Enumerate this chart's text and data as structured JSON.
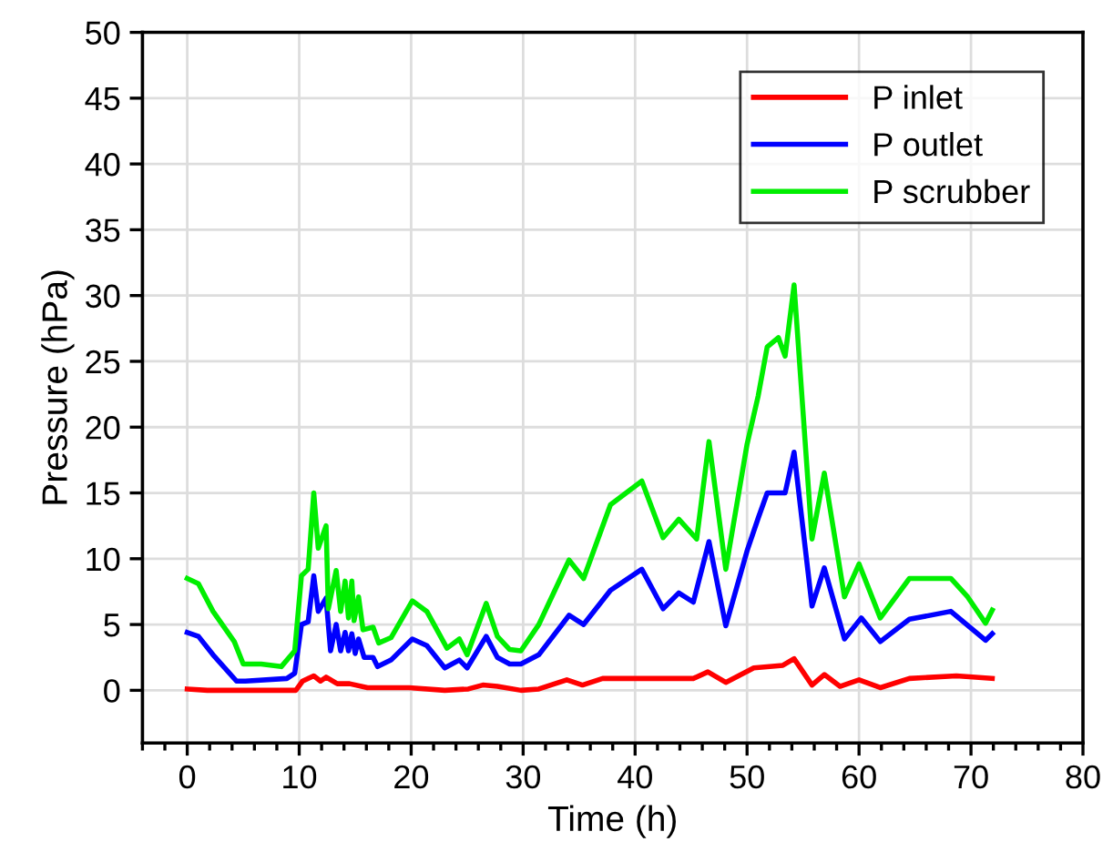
{
  "chart_data": {
    "type": "line",
    "xlabel": "Time (h)",
    "ylabel": "Pressure (hPa)",
    "xlim": [
      -4,
      80
    ],
    "ylim": [
      -4,
      50
    ],
    "xticks": [
      {
        "value": -4,
        "label": null
      },
      {
        "value": -2,
        "label": null
      },
      0,
      {
        "value": 2,
        "label": null
      },
      {
        "value": 4,
        "label": null
      },
      {
        "value": 6,
        "label": null
      },
      {
        "value": 8,
        "label": null
      },
      10,
      {
        "value": 12,
        "label": null
      },
      {
        "value": 14,
        "label": null
      },
      {
        "value": 16,
        "label": null
      },
      {
        "value": 18,
        "label": null
      },
      20,
      {
        "value": 22,
        "label": null
      },
      {
        "value": 24,
        "label": null
      },
      {
        "value": 26,
        "label": null
      },
      {
        "value": 28,
        "label": null
      },
      30,
      {
        "value": 32,
        "label": null
      },
      {
        "value": 34,
        "label": null
      },
      {
        "value": 36,
        "label": null
      },
      {
        "value": 38,
        "label": null
      },
      40,
      {
        "value": 42,
        "label": null
      },
      {
        "value": 44,
        "label": null
      },
      {
        "value": 46,
        "label": null
      },
      {
        "value": 48,
        "label": null
      },
      50,
      {
        "value": 52,
        "label": null
      },
      {
        "value": 54,
        "label": null
      },
      {
        "value": 56,
        "label": null
      },
      {
        "value": 58,
        "label": null
      },
      60,
      {
        "value": 62,
        "label": null
      },
      {
        "value": 64,
        "label": null
      },
      {
        "value": 66,
        "label": null
      },
      {
        "value": 68,
        "label": null
      },
      70,
      {
        "value": 72,
        "label": null
      },
      {
        "value": 74,
        "label": null
      },
      {
        "value": 76,
        "label": null
      },
      {
        "value": 78,
        "label": null
      },
      80
    ],
    "yticks": [
      0,
      5,
      10,
      15,
      20,
      25,
      30,
      35,
      40,
      45,
      50
    ],
    "grid": true,
    "legend": "top right",
    "marker": "none",
    "line_style": "solid",
    "series": [
      {
        "name": "P inlet",
        "color": "#ff0000",
        "x": [
          0,
          1.8,
          9.7,
          10.3,
          11.3,
          11.9,
          12.4,
          13.4,
          14.5,
          16.1,
          19.8,
          23.0,
          25.1,
          26.4,
          27.7,
          29.8,
          31.4,
          33.9,
          35.3,
          37.1,
          45.2,
          46.5,
          48.1,
          50.6,
          53.2,
          54.2,
          55.8,
          56.9,
          58.3,
          60.0,
          61.9,
          64.5,
          68.7,
          71.9
        ],
        "values": [
          0.1,
          0,
          0,
          0.7,
          1.1,
          0.7,
          1.0,
          0.5,
          0.5,
          0.2,
          0.2,
          0,
          0.1,
          0.4,
          0.3,
          0,
          0.1,
          0.8,
          0.4,
          0.9,
          0.9,
          1.4,
          0.6,
          1.7,
          1.9,
          2.4,
          0.4,
          1.2,
          0.3,
          0.8,
          0.2,
          0.9,
          1.1,
          0.9
        ]
      },
      {
        "name": "P outlet",
        "color": "#0000ff",
        "x": [
          0,
          1.0,
          2.3,
          4.4,
          5.2,
          8.9,
          9.6,
          10.2,
          10.8,
          11.3,
          11.7,
          12.4,
          12.8,
          13.3,
          13.7,
          14.1,
          14.4,
          14.7,
          15.0,
          15.3,
          15.8,
          16.6,
          17.0,
          18.2,
          20.1,
          21.4,
          23.0,
          24.3,
          25.0,
          26.7,
          27.7,
          28.8,
          29.8,
          31.4,
          34.1,
          35.4,
          37.8,
          40.6,
          42.5,
          43.9,
          45.2,
          46.6,
          48.1,
          50.0,
          51.0,
          51.8,
          53.4,
          54.2,
          55.8,
          56.9,
          58.7,
          60.2,
          61.9,
          64.5,
          68.2,
          71.3,
          71.9
        ],
        "values": [
          4.4,
          4.1,
          2.7,
          0.7,
          0.7,
          0.9,
          1.3,
          5.0,
          5.2,
          8.7,
          6.0,
          7.0,
          3.0,
          5.0,
          3.0,
          4.4,
          3.0,
          4.3,
          2.8,
          3.9,
          2.5,
          2.5,
          1.8,
          2.3,
          3.9,
          3.4,
          1.7,
          2.3,
          1.7,
          4.1,
          2.5,
          2.0,
          2.0,
          2.7,
          5.7,
          5.0,
          7.6,
          9.2,
          6.2,
          7.4,
          6.7,
          11.3,
          4.9,
          10.6,
          13.1,
          15.0,
          15.0,
          18.1,
          6.4,
          9.3,
          3.9,
          5.5,
          3.7,
          5.4,
          6.0,
          3.8,
          4.3
        ]
      },
      {
        "name": "P scrubber",
        "color": "#00ee00",
        "x": [
          0,
          1.0,
          2.3,
          4.2,
          5.0,
          6.6,
          8.4,
          9.6,
          10.2,
          10.8,
          11.3,
          11.7,
          12.4,
          12.6,
          13.3,
          13.7,
          14.1,
          14.4,
          14.7,
          14.9,
          15.3,
          15.7,
          16.6,
          17.1,
          18.2,
          20.1,
          21.4,
          23.2,
          24.3,
          25.0,
          26.7,
          27.7,
          28.8,
          29.8,
          31.4,
          34.1,
          35.4,
          37.8,
          40.6,
          42.5,
          43.9,
          45.5,
          46.6,
          48.1,
          50.0,
          51.0,
          51.8,
          52.8,
          53.4,
          54.2,
          55.8,
          56.9,
          58.7,
          60.0,
          61.9,
          64.5,
          68.2,
          69.7,
          71.3,
          71.9
        ],
        "values": [
          8.5,
          8.1,
          6.0,
          3.7,
          2.0,
          2.0,
          1.8,
          3.0,
          8.7,
          9.2,
          15.0,
          10.8,
          12.5,
          6.2,
          9.1,
          6.0,
          8.3,
          5.5,
          8.3,
          5.3,
          7.1,
          4.6,
          4.8,
          3.6,
          4.0,
          6.8,
          6.0,
          3.2,
          3.9,
          2.7,
          6.6,
          4.1,
          3.1,
          3.0,
          5.0,
          9.9,
          8.5,
          14.1,
          15.9,
          11.6,
          13.0,
          11.5,
          18.9,
          9.2,
          18.7,
          22.4,
          26.1,
          26.8,
          25.4,
          30.8,
          11.5,
          16.5,
          7.1,
          9.6,
          5.5,
          8.5,
          8.5,
          7.1,
          5.1,
          6.1
        ]
      }
    ]
  }
}
